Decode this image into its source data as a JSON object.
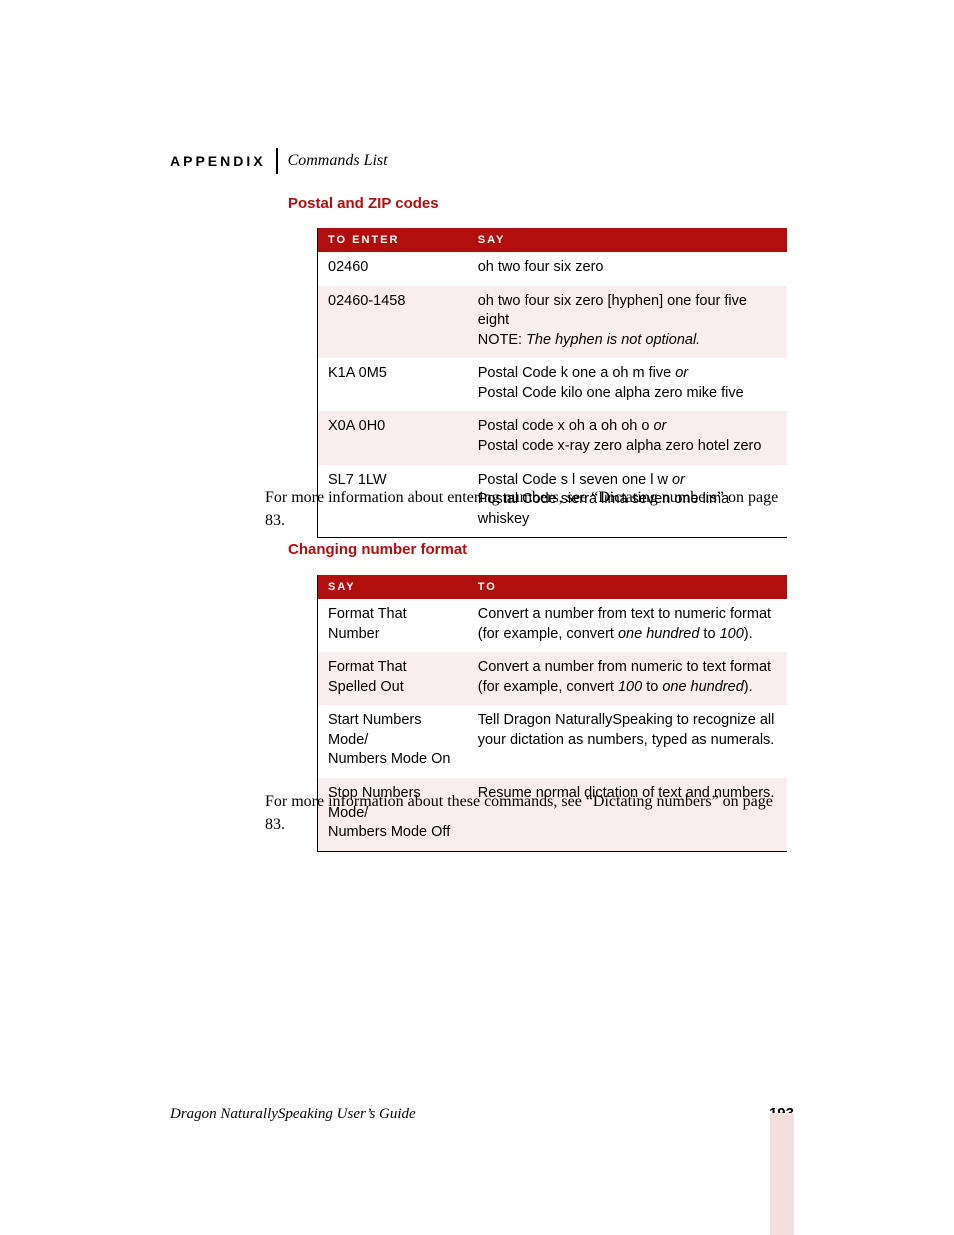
{
  "colors": {
    "accent": "#b30e0e",
    "row_tint": "#f9eeee",
    "thumb": "#f4dede",
    "text": "#000000",
    "bg": "#ffffff"
  },
  "header": {
    "appendix": "APPENDIX",
    "section": "Commands List"
  },
  "section1": {
    "heading": "Postal and ZIP codes",
    "col_a": "To Enter",
    "col_b": "Say",
    "rows": [
      {
        "a": "02460",
        "b_plain": "oh two four six zero"
      },
      {
        "a": "02460-1458",
        "b_line1": "oh two four six zero [hyphen] one four five eight",
        "b_note_label": "NOTE: ",
        "b_note_ital": "The hyphen is not optional."
      },
      {
        "a": "K1A 0M5",
        "b_pre1": "Postal Code k one a oh m five ",
        "b_or": "or",
        "b_line2": "Postal Code kilo one alpha zero mike five"
      },
      {
        "a": "X0A 0H0",
        "b_pre1": "Postal code x oh a oh oh o ",
        "b_or": "or",
        "b_line2": "Postal code x-ray zero alpha zero hotel zero"
      },
      {
        "a": "SL7 1LW",
        "b_pre1": "Postal Code s l seven one l w ",
        "b_or": "or",
        "b_line2": "Postal Code sierra lima seven one lima whiskey"
      }
    ]
  },
  "body1": "For more information about entering numbers, see “Dictating numbers” on page 83.",
  "section2": {
    "heading": "Changing number format",
    "col_a": "Say",
    "col_b": "To",
    "rows": [
      {
        "a": "Format That Number",
        "b_pre": "Convert a number from text to numeric format (for example, convert ",
        "b_i1": "one hundred",
        "b_mid": " to ",
        "b_i2": "100",
        "b_post": ")."
      },
      {
        "a": "Format That Spelled Out",
        "b_pre": "Convert a number from numeric to text format (for example, convert ",
        "b_i1": "100",
        "b_mid": " to ",
        "b_i2": "one hundred",
        "b_post": ")."
      },
      {
        "a": "Start Numbers Mode/\nNumbers Mode On",
        "b_plain": "Tell Dragon NaturallySpeaking to recognize all your dictation as numbers, typed as numerals."
      },
      {
        "a": "Stop Numbers Mode/\nNumbers Mode Off",
        "b_plain": "Resume normal dictation of text and numbers."
      }
    ]
  },
  "body2": "For more information about these commands, see “Dictating numbers” on page 83.",
  "footer": {
    "title": "Dragon NaturallySpeaking User’s Guide",
    "page": "193"
  }
}
